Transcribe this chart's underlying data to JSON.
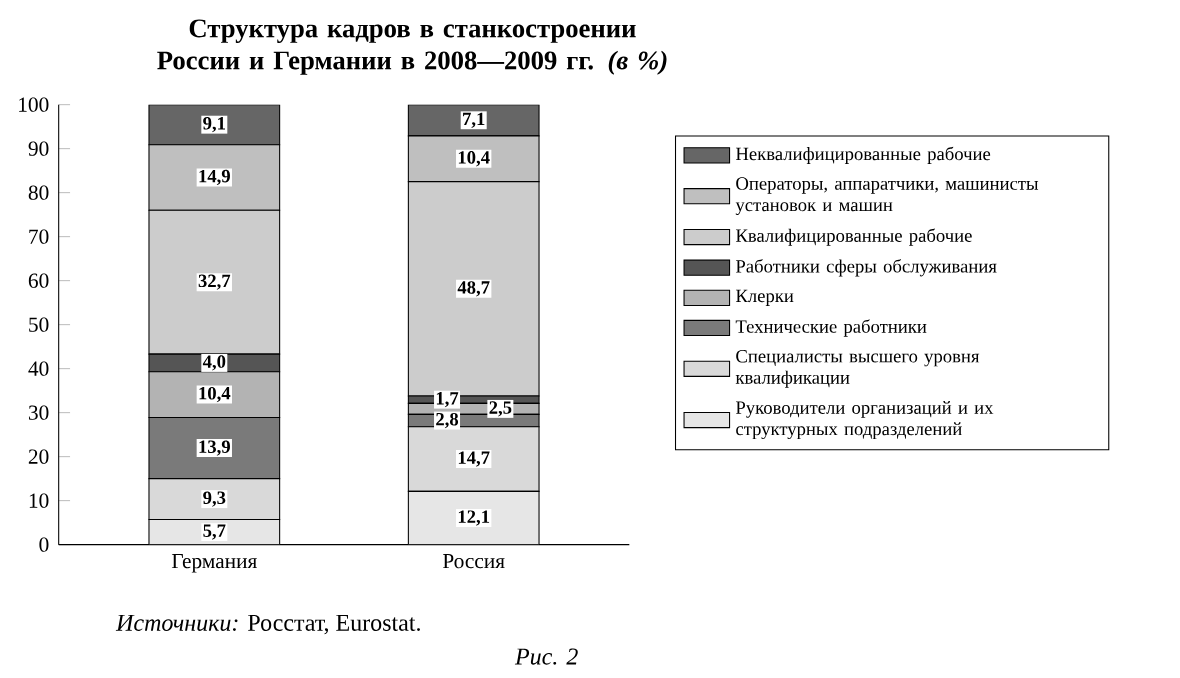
{
  "chart_data": {
    "type": "bar",
    "stacked": true,
    "title": "Структура кадров в станкостроении России и Германии в 2008—2009 гг. *(в %)*",
    "categories": [
      "Германия",
      "Россия"
    ],
    "series": [
      {
        "name": "Руководители организаций и их структурных подразделений",
        "color": "#e6e6e6",
        "values": [
          5.7,
          12.1
        ],
        "value_labels": [
          "5,7",
          "12,1"
        ]
      },
      {
        "name": "Специалисты высшего уровня квалификации",
        "color": "#d9d9d9",
        "values": [
          9.3,
          14.7
        ],
        "value_labels": [
          "9,3",
          "14,7"
        ]
      },
      {
        "name": "Технические работники",
        "color": "#7a7a7a",
        "values": [
          13.9,
          2.8
        ],
        "value_labels": [
          "13,9",
          "2,8"
        ]
      },
      {
        "name": "Клерки",
        "color": "#b3b3b3",
        "values": [
          10.4,
          2.5
        ],
        "value_labels": [
          "10,4",
          "2,5"
        ]
      },
      {
        "name": "Работники сферы обслуживания",
        "color": "#555555",
        "values": [
          4.0,
          1.7
        ],
        "value_labels": [
          "4,0",
          "1,7"
        ]
      },
      {
        "name": "Квалифицированные рабочие",
        "color": "#cccccc",
        "values": [
          32.7,
          48.7
        ],
        "value_labels": [
          "32,7",
          "48,7"
        ]
      },
      {
        "name": "Операторы, аппаратчики, машинисты установок и машин",
        "color": "#bfbfbf",
        "values": [
          14.9,
          10.4
        ],
        "value_labels": [
          "14,9",
          "10,4"
        ]
      },
      {
        "name": "Неквалифицированные рабочие",
        "color": "#666666",
        "values": [
          9.1,
          7.1
        ],
        "value_labels": [
          "9,1",
          "7,1"
        ]
      }
    ],
    "ylim": [
      0,
      100
    ],
    "yticks": [
      0,
      10,
      20,
      30,
      40,
      50,
      60,
      70,
      80,
      90,
      100
    ],
    "legend": "right",
    "grid": false,
    "annotations": [
      "*Источники:* Росстат, Eurostat.",
      "*Рис. 2*"
    ]
  }
}
